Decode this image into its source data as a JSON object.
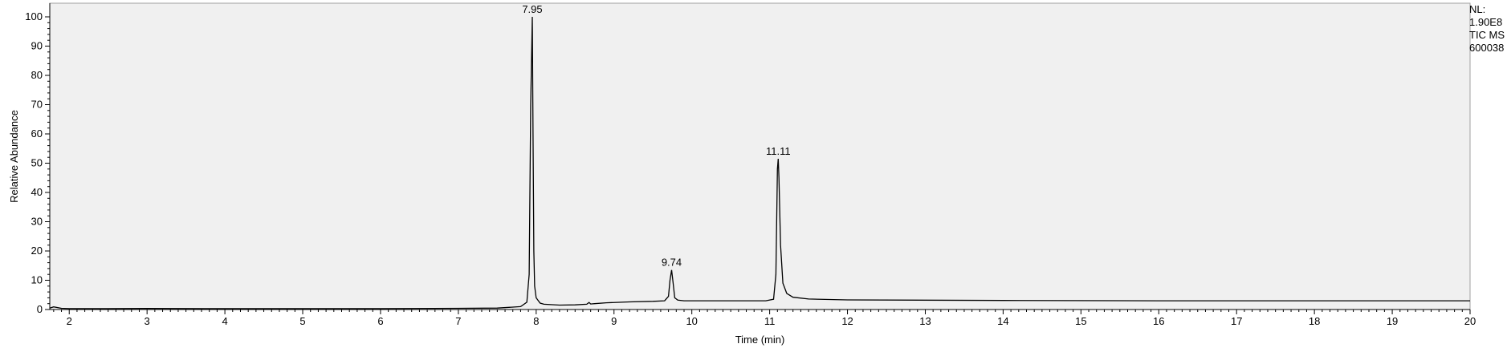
{
  "chart_data": {
    "type": "line",
    "title": "",
    "xlabel": "Time (min)",
    "ylabel": "Relative Abundance",
    "xlim": [
      1.75,
      20
    ],
    "ylim": [
      0,
      100
    ],
    "x_ticks": [
      "2",
      "3",
      "4",
      "5",
      "6",
      "7",
      "8",
      "9",
      "10",
      "11",
      "12",
      "13",
      "14",
      "15",
      "16",
      "17",
      "18",
      "19",
      "20"
    ],
    "y_ticks": [
      "0",
      "10",
      "20",
      "30",
      "40",
      "50",
      "60",
      "70",
      "80",
      "90",
      "100"
    ],
    "grid": false,
    "background": "#f0f0f0",
    "line_color": "#000000",
    "peaks": [
      {
        "label": "7.95",
        "x": 7.95,
        "y": 100
      },
      {
        "label": "9.74",
        "x": 9.74,
        "y": 13.5
      },
      {
        "label": "11.11",
        "x": 11.11,
        "y": 51.5
      }
    ],
    "series": [
      {
        "x": [
          1.75,
          1.8,
          1.9,
          2.0,
          2.5,
          3.0,
          4.0,
          5.0,
          6.0,
          7.0,
          7.5,
          7.8,
          7.88,
          7.91,
          7.93,
          7.95,
          7.96,
          7.97,
          7.98,
          8.0,
          8.05,
          8.1,
          8.3,
          8.5,
          8.65,
          8.68,
          8.7,
          8.75,
          8.9,
          9.2,
          9.5,
          9.65,
          9.7,
          9.72,
          9.74,
          9.76,
          9.78,
          9.82,
          9.9,
          10.2,
          10.6,
          10.95,
          11.05,
          11.08,
          11.1,
          11.11,
          11.12,
          11.14,
          11.17,
          11.22,
          11.3,
          11.5,
          12.0,
          14.0,
          16.0,
          18.0,
          20.0
        ],
        "y": [
          0.5,
          0.9,
          0.4,
          0.3,
          0.3,
          0.35,
          0.3,
          0.3,
          0.3,
          0.4,
          0.5,
          1.0,
          2.5,
          12,
          70,
          100,
          60,
          20,
          8,
          4,
          2.2,
          1.8,
          1.5,
          1.6,
          1.8,
          2.4,
          1.9,
          2.0,
          2.3,
          2.6,
          2.8,
          3.0,
          4.5,
          10,
          13.5,
          9,
          4,
          3.2,
          3.0,
          3.0,
          3.0,
          3.0,
          3.5,
          12,
          48,
          51.5,
          45,
          22,
          9,
          5.5,
          4.2,
          3.6,
          3.3,
          3.1,
          3.0,
          3.0,
          3.0
        ]
      }
    ]
  },
  "info_box": {
    "line1": "NL:",
    "line2": "1.90E8",
    "line3": "TIC  MS",
    "line4": "600038"
  }
}
